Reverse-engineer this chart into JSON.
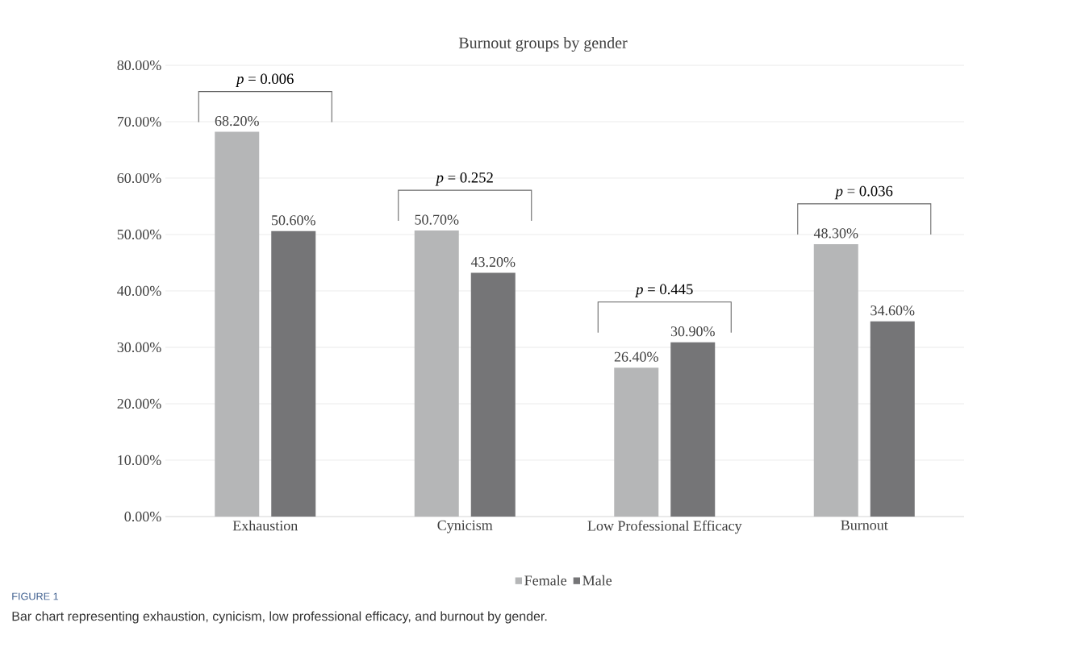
{
  "chart_data": {
    "type": "bar",
    "title": "Burnout groups by gender",
    "categories": [
      "Exhaustion",
      "Cynicism",
      "Low Professional Efficacy",
      "Burnout"
    ],
    "series": [
      {
        "name": "Female",
        "color": "#b5b6b7",
        "values": [
          68.2,
          50.7,
          26.4,
          48.3
        ],
        "value_labels": [
          "68.20%",
          "50.70%",
          "26.40%",
          "48.30%"
        ]
      },
      {
        "name": "Male",
        "color": "#757577",
        "values": [
          50.6,
          43.2,
          30.9,
          34.6
        ],
        "value_labels": [
          "50.60%",
          "43.20%",
          "30.90%",
          "34.60%"
        ]
      }
    ],
    "ylim": [
      0,
      80
    ],
    "yticks": [
      {
        "value": 0,
        "label": "0.00%"
      },
      {
        "value": 10,
        "label": "10.00%"
      },
      {
        "value": 20,
        "label": "20.00%"
      },
      {
        "value": 30,
        "label": "30.00%"
      },
      {
        "value": 40,
        "label": "40.00%"
      },
      {
        "value": 50,
        "label": "50.00%"
      },
      {
        "value": 60,
        "label": "60.00%"
      },
      {
        "value": 70,
        "label": "70.00%"
      },
      {
        "value": 80,
        "label": "80.00%"
      }
    ],
    "grid": "y",
    "legend": "bottom",
    "annotations": [
      "*p* = 0.006",
      "*p* = 0.252",
      "*p* = 0.445",
      "*p* = 0.036",
      "FIGURE 1",
      "Bar chart representing exhaustion, cynicism, low professional efficacy, and burnout by gender."
    ]
  }
}
